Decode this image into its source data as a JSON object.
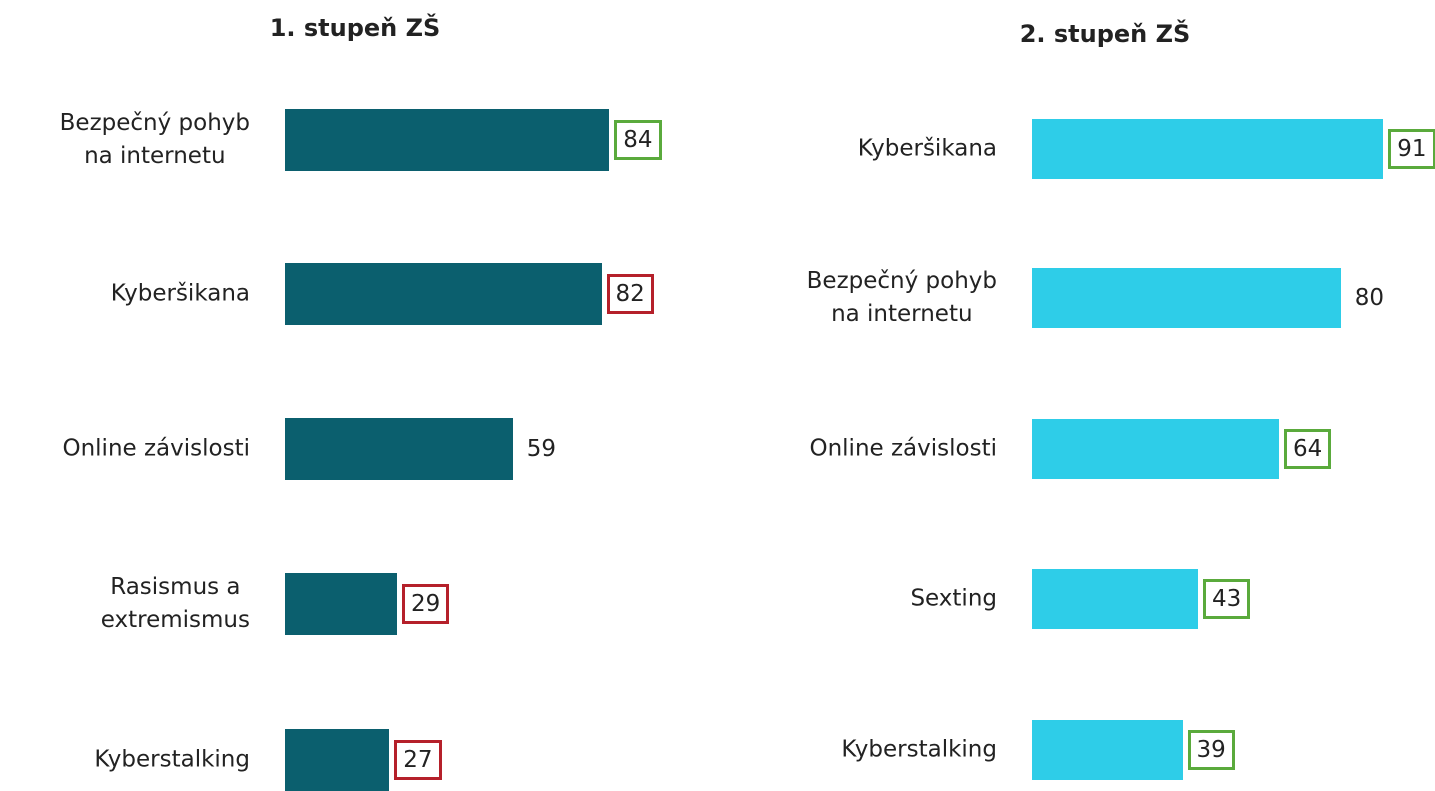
{
  "chart_data": [
    {
      "type": "bar",
      "orientation": "horizontal",
      "title": "1. stupeň ZŠ",
      "color": "#0b5f6e",
      "categories": [
        "Bezpečný pohyb\nna internetu",
        "Kyberšikana",
        "Online závislosti",
        "Rasismus a\nextremismus",
        "Kyberstalking"
      ],
      "values": [
        84,
        82,
        59,
        29,
        27
      ],
      "value_label_boxes": [
        "#5aaa3c",
        "#b5202a",
        null,
        "#b5202a",
        "#b5202a"
      ]
    },
    {
      "type": "bar",
      "orientation": "horizontal",
      "title": "2. stupeň ZŠ",
      "color": "#2ecde8",
      "categories": [
        "Kyberšikana",
        "Bezpečný pohyb\nna internetu",
        "Online závislosti",
        "Sexting",
        "Kyberstalking"
      ],
      "values": [
        91,
        80,
        64,
        43,
        39
      ],
      "value_label_boxes": [
        "#5aaa3c",
        null,
        "#5aaa3c",
        "#5aaa3c",
        "#5aaa3c"
      ]
    }
  ]
}
